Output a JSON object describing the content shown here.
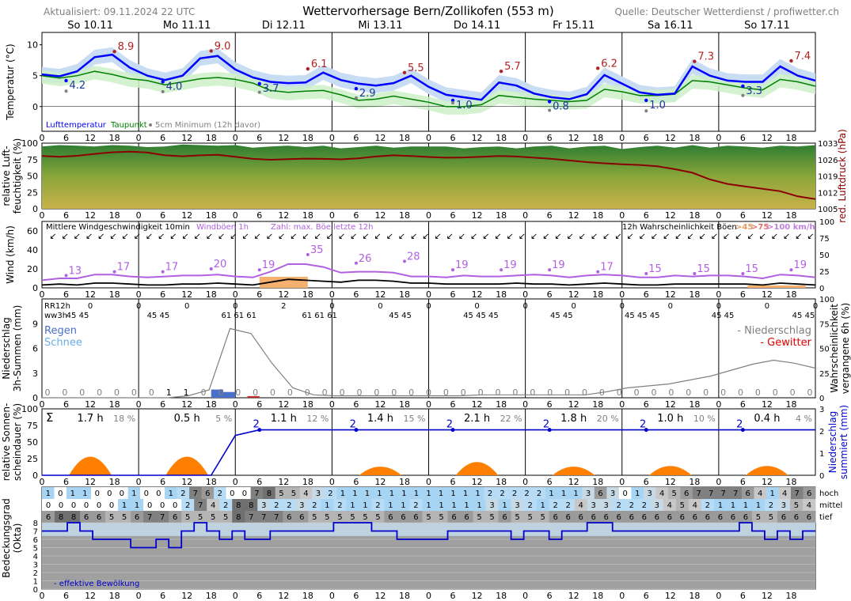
{
  "header": {
    "updated": "Aktualisiert: 09.11.2024 22 UTC",
    "title": "Wettervorhersage Bern/Zollikofen (553 m)",
    "source": "Quelle: Deutscher Wetterdienst / profiwetter.ch"
  },
  "days": [
    "So 10.11",
    "Mo 11.11",
    "Di 12.11",
    "Mi 13.11",
    "Do 14.11",
    "Fr 15.11",
    "Sa 16.11",
    "So 17.11"
  ],
  "hour_ticks": [
    "0",
    "6",
    "12",
    "18"
  ],
  "colors": {
    "temp": "#0000ff",
    "dew": "#008000",
    "min5cm": "#808080",
    "tmax": "#b22222",
    "pressure": "#8b0000",
    "gust": "#b060e0",
    "wind": "#000000",
    "sun": "#ff8000",
    "precip": "#4a6fc8",
    "snow": "#6aaee8",
    "cloud_line": "#0000cc"
  },
  "chart_data": [
    {
      "type": "line",
      "name": "temperature",
      "ylabel": "Temperatur (°C)",
      "ylim": [
        -4,
        12
      ],
      "yticks": [
        "10",
        "5",
        "0"
      ],
      "legend": [
        "Lufttemperatur",
        "Taupunkt",
        "5cm Minimum (12h davor)"
      ],
      "series": [
        {
          "name": "Lufttemperatur",
          "values": [
            5.2,
            4.9,
            5.7,
            8.0,
            8.4,
            6.3,
            5.0,
            4.3,
            5.0,
            7.8,
            8.2,
            6.0,
            4.7,
            4.0,
            3.8,
            3.9,
            5.5,
            4.3,
            3.7,
            3.4,
            3.8,
            5.0,
            3.2,
            1.9,
            1.5,
            1.1,
            3.9,
            3.4,
            2.1,
            1.5,
            1.2,
            2.0,
            5.1,
            3.7,
            2.3,
            1.9,
            2.1,
            6.5,
            5.0,
            4.2,
            4.0,
            4.0,
            6.5,
            5.0,
            4.2
          ]
        },
        {
          "name": "Taupunkt",
          "values": [
            5.0,
            4.6,
            5.0,
            5.7,
            5.2,
            4.5,
            4.2,
            3.5,
            4.0,
            4.5,
            4.7,
            4.4,
            3.8,
            2.6,
            2.3,
            2.5,
            2.6,
            1.9,
            1.0,
            1.2,
            1.7,
            1.2,
            0.7,
            0.0,
            0.0,
            0.3,
            1.8,
            1.5,
            1.2,
            1.0,
            0.8,
            1.0,
            2.8,
            2.4,
            1.8,
            1.8,
            2.0,
            4.2,
            4.0,
            3.5,
            3.0,
            2.7,
            4.4,
            4.0,
            3.3
          ]
        }
      ],
      "tmin_labels": [
        "4.2",
        "4.0",
        "3.7",
        "2.9",
        "1.0",
        "0.8",
        "1.0",
        "3.3"
      ],
      "tmax_labels": [
        "8.9",
        "9.0",
        "6.1",
        "5.5",
        "5.7",
        "6.2",
        "7.3",
        "7.4"
      ],
      "min5cm_values": [
        2.5,
        2.4,
        2.3,
        1.4,
        0.6,
        -0.6,
        -0.7,
        1.8
      ]
    },
    {
      "type": "area",
      "name": "humidity_pressure",
      "ylabel": "relative Luft-\nfeuchtigkeit (%)",
      "ylabel_right": "red. Luftdruck (hPa)",
      "yticks": [
        "100",
        "75",
        "50",
        "25",
        "0"
      ],
      "yticks_right": [
        "1033",
        "1026",
        "1019",
        "1012",
        "1005"
      ],
      "humidity": [
        95,
        97,
        96,
        95,
        97,
        96,
        94,
        95,
        98,
        97,
        96,
        97,
        93,
        95,
        96,
        94,
        96,
        92,
        94,
        96,
        93,
        95,
        95,
        95,
        92,
        94,
        95,
        92,
        95,
        96,
        92,
        95,
        96,
        91,
        94,
        96,
        93,
        97,
        93,
        96,
        95,
        93,
        96,
        95,
        97
      ],
      "pressure": [
        1027.5,
        1027.2,
        1027.6,
        1028.4,
        1029.1,
        1029.4,
        1029,
        1027.8,
        1027.4,
        1027.8,
        1028,
        1027.2,
        1026.3,
        1025.9,
        1026.2,
        1026.4,
        1026.3,
        1026.1,
        1026.5,
        1027.3,
        1027.8,
        1027.5,
        1027.1,
        1026.8,
        1026.9,
        1027.2,
        1027.5,
        1027.3,
        1026.8,
        1026.3,
        1025.6,
        1024.9,
        1024.4,
        1024.0,
        1023.7,
        1023.1,
        1021.9,
        1020.4,
        1017.5,
        1015.6,
        1014.5,
        1013.5,
        1012.5,
        1010.3,
        1009.1
      ]
    },
    {
      "type": "line",
      "name": "wind",
      "ylabel": "Wind (km/h)",
      "yticks": [
        "60",
        "40",
        "20",
        "0"
      ],
      "yticks_right": [
        "100",
        "75",
        "50",
        "25",
        "0"
      ],
      "legend": [
        "Mittlere Windgeschwindigkeit 10min",
        "Windböen 1h",
        "Zahl: max. Böe letzte 12h",
        "12h Wahrscheinlichkeit Böen"
      ],
      "legend_thresholds": [
        ">45",
        ">75",
        ">100 km/h"
      ],
      "gust_max_labels": [
        "13",
        "17",
        "17",
        "20",
        "19",
        "35",
        "26",
        "28",
        "19",
        "19",
        "19",
        "17",
        "15",
        "15",
        "15",
        "19"
      ],
      "gust": [
        8,
        10,
        10,
        14,
        14,
        12,
        11,
        12,
        13,
        13,
        14,
        12,
        11,
        17,
        25,
        25,
        22,
        16,
        17,
        17,
        16,
        12,
        12,
        11,
        13,
        12,
        12,
        13,
        14,
        13,
        11,
        13,
        14,
        13,
        11,
        11,
        13,
        12,
        13,
        13,
        12,
        10,
        14,
        13,
        11
      ],
      "mean": [
        3,
        4,
        3,
        5,
        5,
        4,
        3,
        3,
        4,
        4,
        5,
        4,
        3,
        6,
        9,
        8,
        7,
        6,
        8,
        8,
        7,
        5,
        5,
        4,
        4,
        4,
        4,
        5,
        4,
        4,
        3,
        4,
        5,
        4,
        3,
        3,
        4,
        4,
        4,
        4,
        4,
        3,
        5,
        4,
        3
      ]
    },
    {
      "type": "bar",
      "name": "precipitation",
      "ylabel": "Niederschlag\n3h-Summen (mm)",
      "ylabel_right": "Wahrscheinlichkeit\nvergangene 6h (%)",
      "yticks": [
        "9",
        "6",
        "3",
        "0"
      ],
      "yticks_right": [
        "100",
        "75",
        "50",
        "25",
        "0"
      ],
      "legend": [
        "Regen",
        "Schnee",
        "- Niederschlag",
        "- Gewitter"
      ],
      "rr12h_label": "RR12h",
      "ww3h_label": "ww3h",
      "rr12h": [
        "0",
        "0",
        "0",
        "0",
        "2",
        "0",
        "0",
        "0",
        "0",
        "0",
        "0",
        "0",
        "0",
        "0",
        "0",
        "0"
      ],
      "ww3h": [
        "45 45",
        "45 45",
        "61 61 61",
        "61 61 61",
        "45 45",
        "45 45 45",
        "45 45",
        "45 45 45",
        "45 45",
        "45 45"
      ],
      "bar_labels": [
        "0",
        "0",
        "0",
        "0",
        "0",
        "0",
        "0",
        "1",
        "1",
        "0",
        "0",
        "0",
        "0",
        "0",
        "0",
        "0",
        "0",
        "0",
        "0",
        "0",
        "0",
        "0",
        "0",
        "0",
        "0",
        "0",
        "0",
        "0",
        "0",
        "0",
        "0",
        "0",
        "0",
        "0",
        "0",
        "0",
        "0",
        "0",
        "0",
        "0",
        "0",
        "0",
        "0",
        "0",
        "0"
      ],
      "prob_precip": [
        0,
        0,
        0,
        0,
        0,
        0,
        0,
        2,
        8,
        70,
        65,
        35,
        10,
        3,
        2,
        2,
        2,
        2,
        2,
        2,
        2,
        3,
        3,
        3,
        3,
        3,
        3,
        6,
        10,
        12,
        14,
        18,
        22,
        28,
        34,
        38,
        35,
        30
      ]
    },
    {
      "type": "area",
      "name": "sunshine",
      "ylabel": "relative Sonnen-\nscheindauer (%)",
      "ylabel_right": "Niederschlag\nsummiert (mm)",
      "yticks": [
        "100",
        "75",
        "50",
        "25",
        "0"
      ],
      "yticks_right": [
        "3",
        "2",
        "1",
        "0"
      ],
      "sigma": "Σ",
      "sun_hours": [
        "1.7 h",
        "0.5 h",
        "1.1 h",
        "1.4 h",
        "2.1 h",
        "1.8 h",
        "1.0 h",
        "0.4 h"
      ],
      "sun_pct": [
        "18 %",
        "5 %",
        "12 %",
        "15 %",
        "22 %",
        "20 %",
        "10 %",
        "4 %"
      ],
      "cum_labels": [
        "2",
        "2",
        "2",
        "2",
        "2",
        "2"
      ],
      "sun_peaks": [
        28,
        28,
        0,
        13,
        20,
        13,
        14,
        14
      ]
    },
    {
      "type": "heatmap",
      "name": "cloud_cover",
      "ylabel": "Bedeckungsgrad\n(Okta)",
      "yticks": [
        "8",
        "7",
        "6",
        "5",
        "4",
        "3",
        "2",
        "1",
        "0"
      ],
      "row_labels": [
        "hoch",
        "mittel",
        "tief"
      ],
      "hoch": [
        "1",
        "0",
        "1",
        "1",
        "0",
        "0",
        "0",
        "1",
        "0",
        "0",
        "1",
        "2",
        "7",
        "6",
        "2",
        "0",
        "0",
        "7",
        "8",
        "5",
        "5",
        "4",
        "3",
        "2",
        "1",
        "1",
        "1",
        "1",
        "1",
        "1",
        "1",
        "1",
        "1",
        "1",
        "1",
        "1",
        "2",
        "2",
        "2",
        "2",
        "2",
        "1",
        "1",
        "1",
        "3",
        "6",
        "3",
        "0",
        "1",
        "3",
        "4",
        "5",
        "6",
        "7",
        "7",
        "7",
        "7",
        "6",
        "4",
        "1",
        "4",
        "7",
        "6"
      ],
      "mittel": [
        "0",
        "0",
        "0",
        "0",
        "0",
        "0",
        "1",
        "1",
        "0",
        "0",
        "0",
        "2",
        "7",
        "4",
        "2",
        "8",
        "8",
        "3",
        "2",
        "2",
        "3",
        "2",
        "1",
        "2",
        "1",
        "1",
        "2",
        "1",
        "1",
        "2",
        "1",
        "1",
        "1",
        "1",
        "1",
        "3",
        "1",
        "3",
        "2",
        "1",
        "2",
        "2",
        "4",
        "3",
        "3",
        "2",
        "2",
        "2",
        "3",
        "4",
        "5",
        "4",
        "2",
        "1",
        "1",
        "1",
        "1",
        "2",
        "3",
        "5",
        "4"
      ],
      "tief": [
        "6",
        "8",
        "8",
        "6",
        "6",
        "5",
        "5",
        "6",
        "7",
        "7",
        "6",
        "5",
        "5",
        "5",
        "5",
        "8",
        "7",
        "7",
        "7",
        "6",
        "6",
        "5",
        "5",
        "5",
        "5",
        "5",
        "5",
        "6",
        "6",
        "6",
        "5",
        "5",
        "6",
        "6",
        "5",
        "5",
        "6",
        "5",
        "5",
        "5",
        "6",
        "6",
        "6",
        "6",
        "6",
        "6",
        "6",
        "6",
        "6",
        "6",
        "6",
        "6",
        "6",
        "6",
        "6",
        "6",
        "5",
        "5",
        "6",
        "6",
        "6"
      ],
      "legend": "- effektive Bewölkung",
      "effective": [
        7,
        7,
        8,
        7,
        6,
        6,
        6,
        5,
        5,
        6,
        5,
        7,
        8,
        7,
        6,
        7,
        6,
        6,
        7,
        7,
        7,
        7,
        7,
        8,
        8,
        8,
        7,
        7,
        6,
        6,
        6,
        6,
        7,
        7,
        7,
        7,
        7,
        6,
        7,
        7,
        6,
        7,
        7,
        8,
        8,
        7,
        7,
        7,
        7,
        7,
        7,
        7,
        7,
        7,
        7,
        8,
        7,
        6,
        7,
        6,
        7
      ]
    }
  ]
}
